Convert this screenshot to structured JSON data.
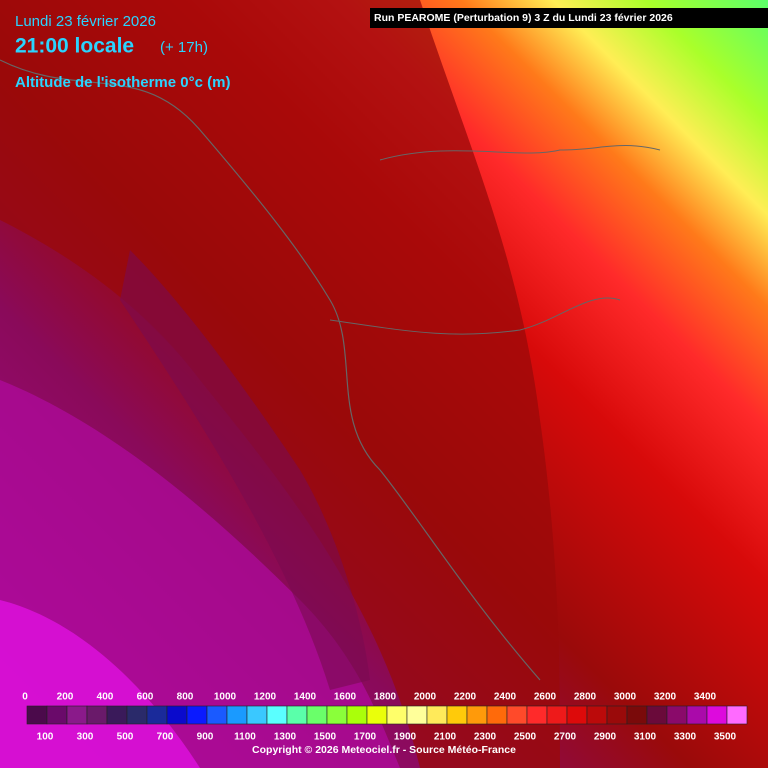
{
  "header": {
    "date": "Lundi 23 février 2026",
    "time": "21:00 locale",
    "offset": "(+ 17h)",
    "field": "Altitude de l'isotherme 0°c (m)"
  },
  "run": "Run PEAROME (Perturbation 9) 3 Z du Lundi 23 février 2026",
  "legend": {
    "top_labels": [
      0,
      200,
      400,
      600,
      800,
      1000,
      1200,
      1400,
      1600,
      1800,
      2000,
      2200,
      2400,
      2600,
      2800,
      3000,
      3200,
      3400
    ],
    "bottom_labels": [
      100,
      300,
      500,
      700,
      900,
      1100,
      1300,
      1500,
      1700,
      1900,
      2100,
      2300,
      2500,
      2700,
      2900,
      3100,
      3300,
      3500
    ],
    "colors": [
      "#4b0a4b",
      "#6a0a6a",
      "#8a1a8a",
      "#6a1a6a",
      "#3a1a5a",
      "#2a2a6a",
      "#1a2a9a",
      "#0a0acc",
      "#0a1aff",
      "#1a5aff",
      "#1a9aff",
      "#3ac8ff",
      "#5affff",
      "#5affaa",
      "#6aff6a",
      "#8aff3a",
      "#aaff0a",
      "#eaff0a",
      "#ffff6a",
      "#ffff9a",
      "#ffea5a",
      "#ffca0a",
      "#ff9a0a",
      "#ff6a0a",
      "#ff4a2a",
      "#ff2a2a",
      "#ee1a1a",
      "#dd0a0a",
      "#bb0a0a",
      "#9a0a0a",
      "#7a0a0a",
      "#6a0a3a",
      "#8a0a6a",
      "#aa0aaa",
      "#dd0add",
      "#ff6aff"
    ]
  },
  "copyright": "Copyright © 2026 Meteociel.fr - Source Météo-France"
}
